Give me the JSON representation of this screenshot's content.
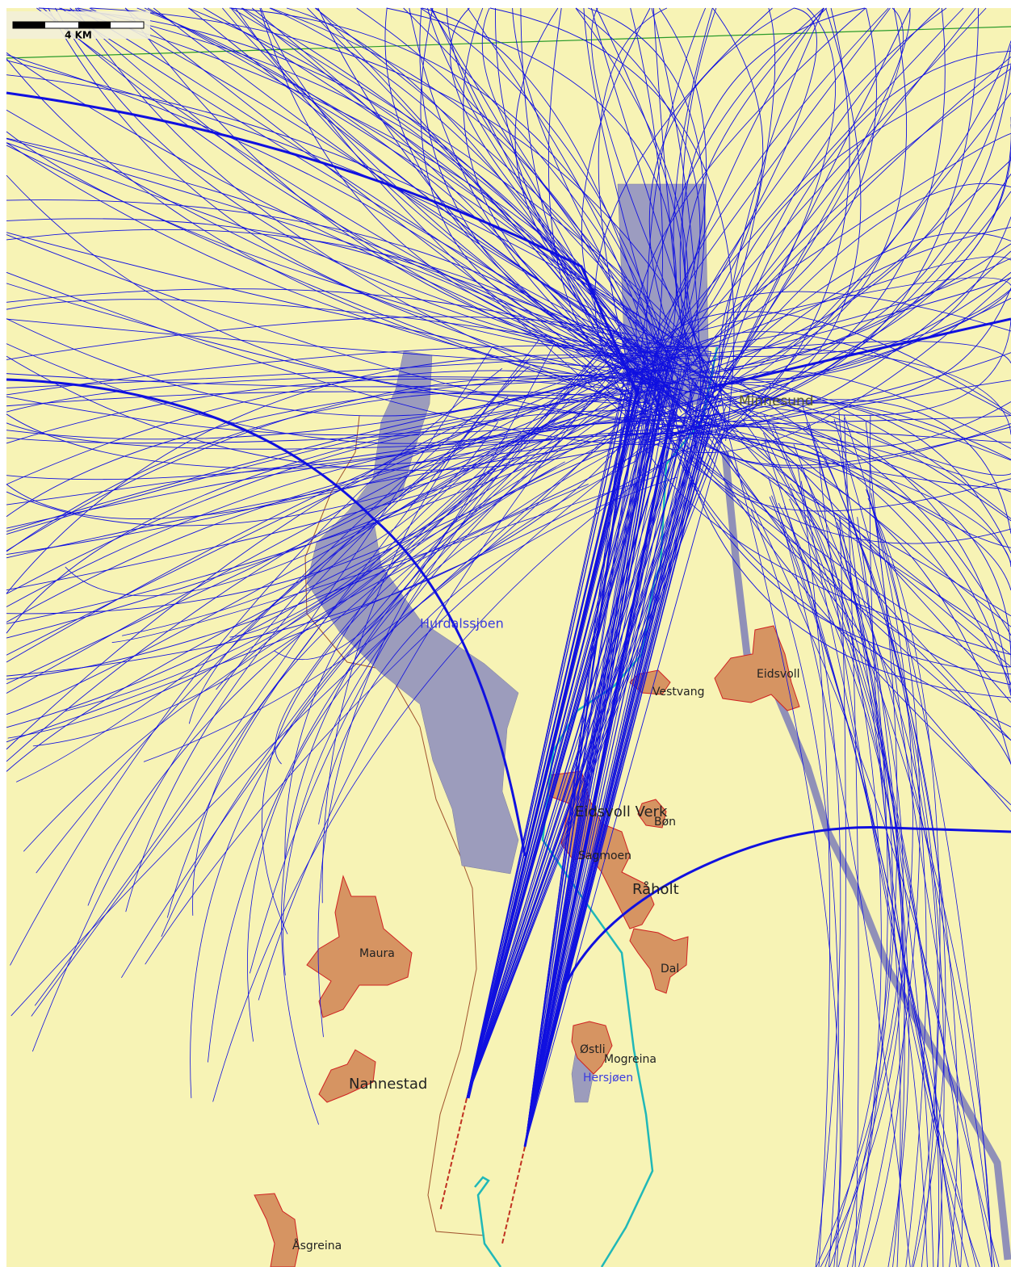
{
  "scale_bar": {
    "label": "4 KM"
  },
  "places": [
    {
      "label": "Minnesund"
    },
    {
      "label": "Hurdalssjoen"
    },
    {
      "label": "Eidsvoll"
    },
    {
      "label": "Vestvang"
    },
    {
      "label": "Eidsvoll Verk"
    },
    {
      "label": "Bøn"
    },
    {
      "label": "Sagmoen"
    },
    {
      "label": "Råholt"
    },
    {
      "label": "Dal"
    },
    {
      "label": "Maura"
    },
    {
      "label": "Nannestad"
    },
    {
      "label": "Østli"
    },
    {
      "label": "Mogreina"
    },
    {
      "label": "Hersjøen"
    },
    {
      "label": "Åsgreina"
    }
  ]
}
